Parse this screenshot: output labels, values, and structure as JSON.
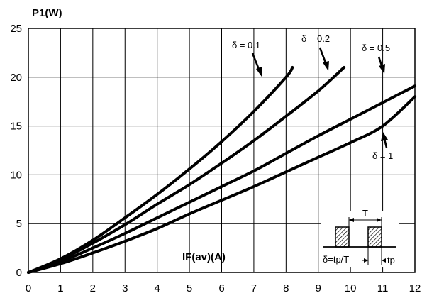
{
  "chart_data": {
    "type": "line",
    "ylabel": "P1(W)",
    "xlabel": "IF(av)(A)",
    "xlim": [
      0,
      12
    ],
    "ylim": [
      0,
      25
    ],
    "xticks": [
      0,
      1,
      2,
      3,
      4,
      5,
      6,
      7,
      8,
      9,
      10,
      11,
      12
    ],
    "yticks": [
      0,
      5,
      10,
      15,
      20,
      25
    ],
    "grid": true,
    "series": [
      {
        "name": "δ = 0.1",
        "x": [
          0,
          1,
          2,
          3,
          4,
          5,
          6,
          7,
          8,
          8.2
        ],
        "y": [
          0,
          1.4,
          3.3,
          5.6,
          8.0,
          10.6,
          13.4,
          16.5,
          20.0,
          21.0
        ]
      },
      {
        "name": "δ = 0.2",
        "x": [
          0,
          1,
          2,
          3,
          4,
          5,
          6,
          7,
          8,
          9,
          9.8
        ],
        "y": [
          0,
          1.3,
          3.0,
          4.9,
          7.0,
          9.0,
          11.2,
          13.5,
          16.0,
          18.6,
          21.0
        ]
      },
      {
        "name": "δ = 0.5",
        "x": [
          0,
          1,
          2,
          3,
          4,
          5,
          6,
          7,
          8,
          9,
          10,
          11,
          12
        ],
        "y": [
          0,
          1.1,
          2.5,
          4.0,
          5.6,
          7.2,
          8.8,
          10.4,
          12.2,
          14.0,
          15.7,
          17.4,
          19.1
        ]
      },
      {
        "name": "δ = 1",
        "x": [
          0,
          1,
          2,
          3,
          4,
          5,
          6,
          7,
          8,
          9,
          10,
          11,
          12
        ],
        "y": [
          0,
          0.9,
          2.0,
          3.2,
          4.5,
          6.0,
          7.4,
          8.8,
          10.3,
          11.8,
          13.3,
          15.0,
          18.0
        ]
      }
    ],
    "annotations": {
      "labels": [
        "δ = 0.1",
        "δ = 0.2",
        "δ = 0.5",
        "δ = 1"
      ],
      "inset": {
        "period_label": "T",
        "pulse_label": "tp",
        "formula": "δ=tp/T"
      }
    }
  }
}
